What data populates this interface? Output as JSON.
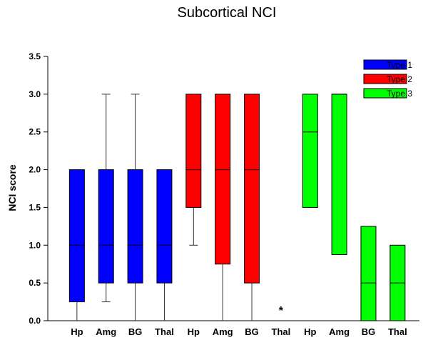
{
  "chart_data": {
    "type": "box",
    "title": "Subcortical NCI",
    "xlabel": "",
    "ylabel": "NCI score",
    "ylim": [
      0,
      3.5
    ],
    "yticks": [
      "0.0",
      "0.5",
      "1.0",
      "1.5",
      "2.0",
      "2.5",
      "3.0",
      "3.5"
    ],
    "ytick_values": [
      0,
      0.5,
      1.0,
      1.5,
      2.0,
      2.5,
      3.0,
      3.5
    ],
    "grid": false,
    "legend_position": "top-right",
    "categories": [
      "Hp",
      "Amg",
      "BG",
      "Thal",
      "Hp",
      "Amg",
      "BG",
      "Thal",
      "Hp",
      "Amg",
      "BG",
      "Thal"
    ],
    "series": [
      {
        "name": "Type 1",
        "color": "#0000ff",
        "boxes": [
          {
            "category": "Hp",
            "min": 0,
            "q1": 0.25,
            "median": 1.0,
            "q3": 2.0,
            "max": 2.0
          },
          {
            "category": "Amg",
            "min": 0.25,
            "q1": 0.5,
            "median": 1.0,
            "q3": 2.0,
            "max": 3.0
          },
          {
            "category": "BG",
            "min": 0,
            "q1": 0.5,
            "median": 1.0,
            "q3": 2.0,
            "max": 3.0
          },
          {
            "category": "Thal",
            "min": 0,
            "q1": 0.5,
            "median": 1.0,
            "q3": 2.0,
            "max": 2.0
          }
        ]
      },
      {
        "name": "Type 2",
        "color": "#ff0000",
        "boxes": [
          {
            "category": "Hp",
            "min": 1.0,
            "q1": 1.5,
            "median": 2.0,
            "q3": 3.0,
            "max": 3.0
          },
          {
            "category": "Amg",
            "min": 0,
            "q1": 0.75,
            "median": 2.0,
            "q3": 3.0,
            "max": 3.0
          },
          {
            "category": "BG",
            "min": 0,
            "q1": 0.5,
            "median": 2.0,
            "q3": 3.0,
            "max": 3.0
          },
          {
            "category": "Thal",
            "missing": true,
            "annotation": "*"
          }
        ]
      },
      {
        "name": "Type 3",
        "color": "#00ff00",
        "boxes": [
          {
            "category": "Hp",
            "min": 1.5,
            "q1": 1.5,
            "median": 2.5,
            "q3": 3.0,
            "max": 3.0
          },
          {
            "category": "Amg",
            "min": 0.875,
            "q1": 0.875,
            "median": 3.0,
            "q3": 3.0,
            "max": 3.0
          },
          {
            "category": "BG",
            "min": 0,
            "q1": 0,
            "median": 0.5,
            "q3": 1.25,
            "max": 1.25
          },
          {
            "category": "Thal",
            "min": 0,
            "q1": 0,
            "median": 0.5,
            "q3": 1.0,
            "max": 1.0
          }
        ]
      }
    ]
  }
}
